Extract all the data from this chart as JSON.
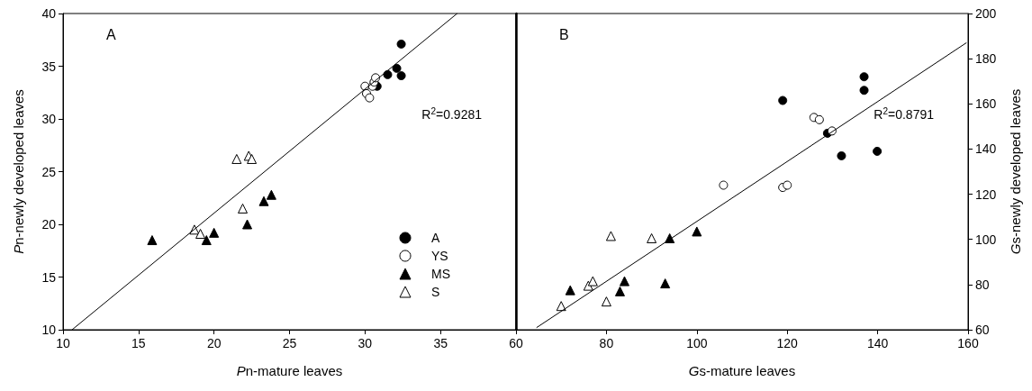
{
  "chart_data": [
    {
      "type": "scatter",
      "xlabel": "Pn-mature leaves",
      "ylabel": "Pn-newly developed leaves",
      "annotations": [
        "A",
        "R$^{2}$=0.9281"
      ],
      "xlim": [
        10,
        40
      ],
      "xticks": [
        10,
        15,
        20,
        25,
        30,
        35
      ],
      "ylim": [
        10,
        40
      ],
      "yticks": [
        10,
        15,
        20,
        25,
        30,
        35,
        40
      ],
      "legend": "bottom right",
      "series": [
        {
          "name": "A",
          "color": "#000000",
          "marker": "circle",
          "x": [
            32.4,
            31.5,
            32.1,
            32.4,
            30.8
          ],
          "values": [
            37.1,
            34.2,
            34.8,
            34.1,
            33.1
          ]
        },
        {
          "name": "YS",
          "color": "#ffffff",
          "marker": "circle",
          "x": [
            30.0,
            30.1,
            30.3,
            30.5,
            30.6,
            30.7
          ],
          "values": [
            33.1,
            32.4,
            32.0,
            33.1,
            33.5,
            33.9
          ]
        },
        {
          "name": "MS",
          "color": "#000000",
          "marker": "triangle",
          "x": [
            15.9,
            19.5,
            20.0,
            22.2,
            23.3,
            23.8
          ],
          "values": [
            18.5,
            18.5,
            19.2,
            20.0,
            22.2,
            22.8
          ]
        },
        {
          "name": "S",
          "color": "#ffffff",
          "marker": "triangle",
          "x": [
            21.5,
            22.3,
            22.5,
            21.9,
            18.7,
            19.1
          ],
          "values": [
            26.2,
            26.5,
            26.2,
            21.5,
            19.5,
            19.1
          ]
        },
        {
          "type": "line",
          "color": "#000000",
          "marker": "none",
          "line_style": "solid",
          "x": [
            10.6,
            36.1
          ],
          "values": [
            10,
            40
          ]
        }
      ]
    },
    {
      "type": "scatter",
      "xlabel": "Gs-mature leaves",
      "y2label": "Gs-newly developed leaves",
      "annotations": [
        "B",
        "R$^{2}$=0.8791"
      ],
      "xlim": [
        60,
        160
      ],
      "xticks": [
        60,
        80,
        100,
        120,
        140,
        160
      ],
      "y2lim": [
        60,
        200
      ],
      "y2ticks": [
        60,
        80,
        100,
        120,
        140,
        160,
        180,
        200
      ],
      "legend": false,
      "series": [
        {
          "color": "#000000",
          "marker": "circle",
          "axis": "y2",
          "x": [
            137.0,
            137.0,
            119.0,
            128.9,
            132.0,
            139.9
          ],
          "values": [
            172,
            166,
            161.5,
            147,
            137,
            139
          ]
        },
        {
          "color": "#ffffff",
          "marker": "circle",
          "axis": "y2",
          "x": [
            125.9,
            127.1,
            129.9,
            105.9,
            119.0,
            120.0
          ],
          "values": [
            154,
            153,
            148,
            124,
            123,
            124
          ]
        },
        {
          "color": "#000000",
          "marker": "triangle",
          "axis": "y2",
          "x": [
            72,
            83,
            84,
            93,
            94,
            100
          ],
          "values": [
            77.5,
            77,
            81.5,
            80.5,
            100.5,
            103.5
          ]
        },
        {
          "color": "#ffffff",
          "marker": "triangle",
          "axis": "y2",
          "x": [
            70,
            76,
            77,
            80,
            81,
            90
          ],
          "values": [
            70.5,
            79.5,
            81.5,
            72.5,
            101.5,
            100.5
          ]
        },
        {
          "type": "line",
          "color": "#000000",
          "marker": "none",
          "line_style": "solid",
          "axis": "y2",
          "x": [
            64.6,
            159.6
          ],
          "values": [
            61,
            187
          ]
        }
      ]
    }
  ]
}
